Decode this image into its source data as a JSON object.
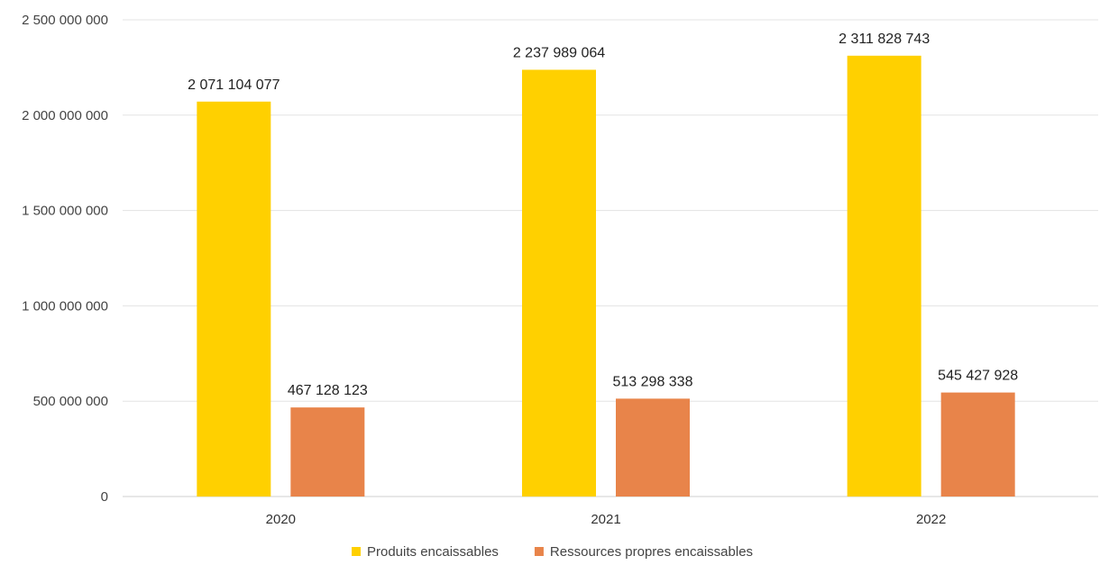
{
  "chart_data": {
    "type": "bar",
    "title": "",
    "xlabel": "",
    "ylabel": "",
    "categories": [
      "2020",
      "2021",
      "2022"
    ],
    "series": [
      {
        "name": "Produits encaissables",
        "color": "#FFD000",
        "values": [
          2071104077,
          2237989064,
          2311828743
        ],
        "labels": [
          "2 071 104 077",
          "2 237 989 064",
          "2 311 828 743"
        ]
      },
      {
        "name": "Ressources propres encaissables",
        "color": "#E8844A",
        "values": [
          467128123,
          513298338,
          545427928
        ],
        "labels": [
          "467 128 123",
          "513 298 338",
          "545 427 928"
        ]
      }
    ],
    "ylim": [
      0,
      2500000000
    ],
    "yticks": [
      {
        "value": 0,
        "label": "0"
      },
      {
        "value": 500000000,
        "label": "500 000 000"
      },
      {
        "value": 1000000000,
        "label": "1 000 000 000"
      },
      {
        "value": 1500000000,
        "label": "1 500 000 000"
      },
      {
        "value": 2000000000,
        "label": "2 000 000 000"
      },
      {
        "value": 2500000000,
        "label": "2 500 000 000"
      }
    ],
    "grid": true,
    "legend_position": "bottom"
  }
}
